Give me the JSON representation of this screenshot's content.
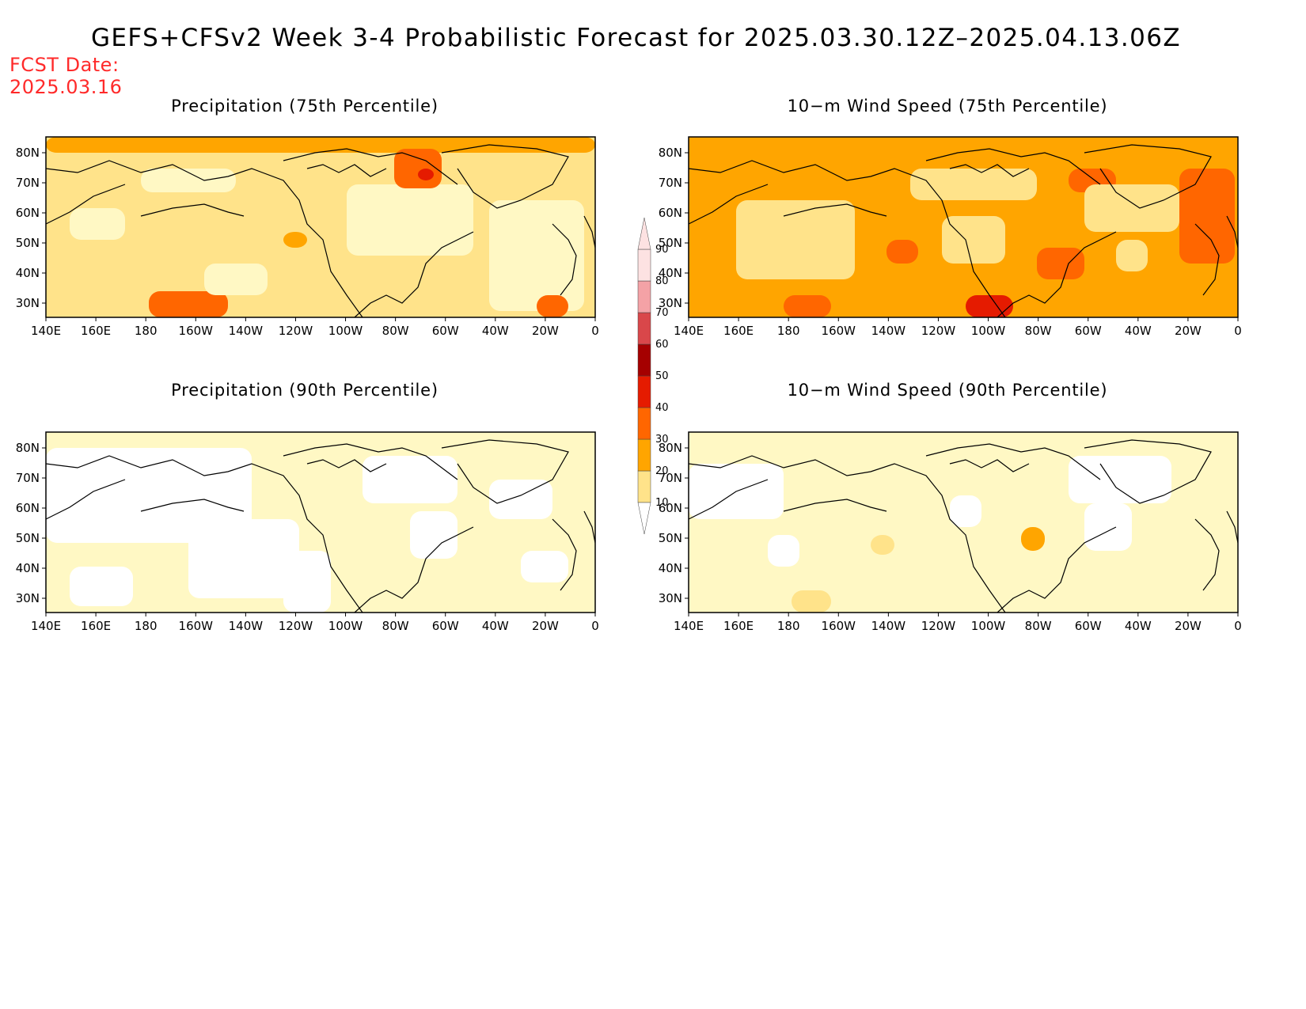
{
  "title": "GEFS+CFSv2 Week 3-4 Probabilistic Forecast for 2025.03.30.12Z–2025.04.13.06Z",
  "fcst_date": {
    "label": "FCST Date:",
    "value": "2025.03.16"
  },
  "axes": {
    "lat_ticks": [
      "80N",
      "70N",
      "60N",
      "50N",
      "40N",
      "30N"
    ],
    "lon_ticks": [
      "140E",
      "160E",
      "180",
      "160W",
      "140W",
      "120W",
      "100W",
      "80W",
      "60W",
      "40W",
      "20W",
      "0"
    ]
  },
  "colorbar": {
    "levels": [
      "10",
      "20",
      "30",
      "40",
      "50",
      "60",
      "70",
      "80",
      "90"
    ],
    "colors": [
      "#fff8c4",
      "#ffe38a",
      "#ffa500",
      "#ff6600",
      "#e51b00",
      "#a50000",
      "#d9474a",
      "#f4a2a6",
      "#fde2e2"
    ]
  },
  "panels": [
    {
      "title": "Precipitation (75th Percentile)"
    },
    {
      "title": "10−m Wind Speed (75th Percentile)"
    },
    {
      "title": "Precipitation (90th Percentile)"
    },
    {
      "title": "10−m Wind Speed (90th Percentile)"
    }
  ]
}
